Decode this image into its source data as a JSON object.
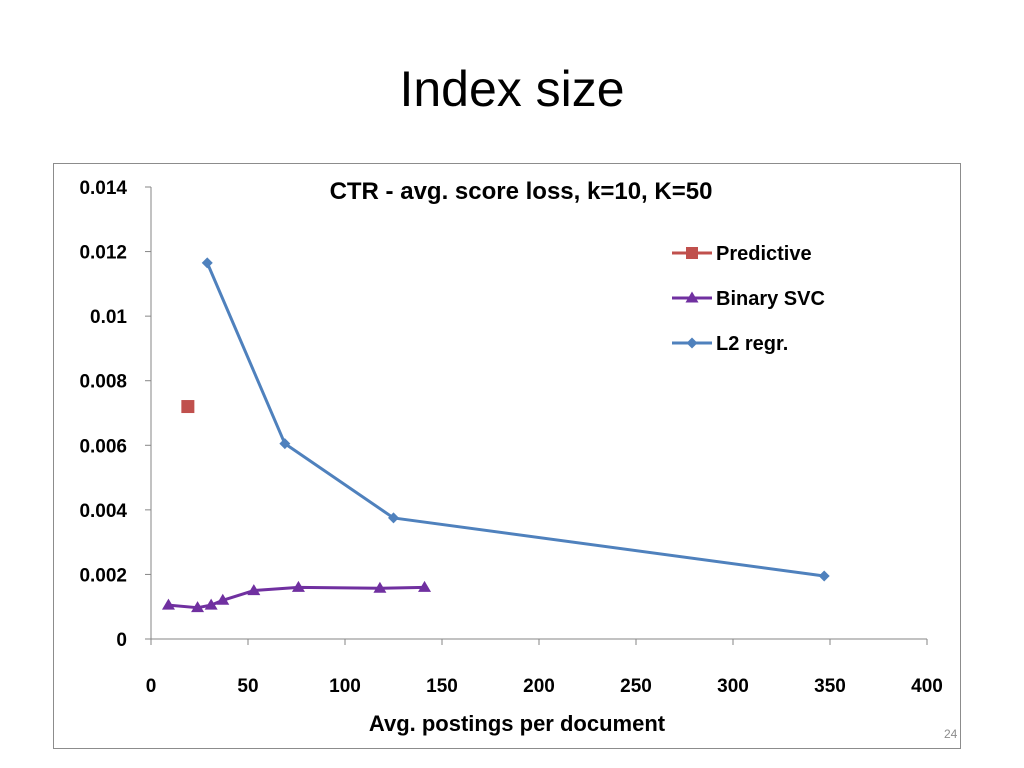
{
  "slide": {
    "title": "Index size",
    "number": "24"
  },
  "chart_data": {
    "type": "scatter",
    "title": "CTR - avg. score loss, k=10, K=50",
    "xlabel": "Avg. postings  per document",
    "ylabel": "",
    "xlim": [
      0,
      400
    ],
    "ylim": [
      0,
      0.014
    ],
    "x_ticks": [
      0,
      50,
      100,
      150,
      200,
      250,
      300,
      350,
      400
    ],
    "y_ticks": [
      0,
      0.002,
      0.004,
      0.006,
      0.008,
      0.01,
      0.012,
      0.014
    ],
    "x_tick_labels": [
      "0",
      "50",
      "100",
      "150",
      "200",
      "250",
      "300",
      "350",
      "400"
    ],
    "y_tick_labels": [
      "0",
      "0.002",
      "0.004",
      "0.006",
      "0.008",
      "0.01",
      "0.012",
      "0.014"
    ],
    "grid": false,
    "legend_position": "top-right",
    "series": [
      {
        "name": "Predictive",
        "color": "#c0504d",
        "marker": "square",
        "line": false,
        "points": [
          [
            19,
            0.0072
          ]
        ]
      },
      {
        "name": "Binary SVC",
        "color": "#7030a0",
        "marker": "triangle",
        "line": true,
        "points": [
          [
            9,
            0.00105
          ],
          [
            24,
            0.00097
          ],
          [
            31,
            0.00105
          ],
          [
            37,
            0.0012
          ],
          [
            53,
            0.0015
          ],
          [
            76,
            0.0016
          ],
          [
            118,
            0.00157
          ],
          [
            141,
            0.0016
          ]
        ]
      },
      {
        "name": "L2 regr.",
        "color": "#4f81bd",
        "marker": "diamond",
        "line": true,
        "points": [
          [
            29,
            0.01165
          ],
          [
            69,
            0.00605
          ],
          [
            125,
            0.00375
          ],
          [
            347,
            0.00195
          ]
        ]
      }
    ]
  }
}
